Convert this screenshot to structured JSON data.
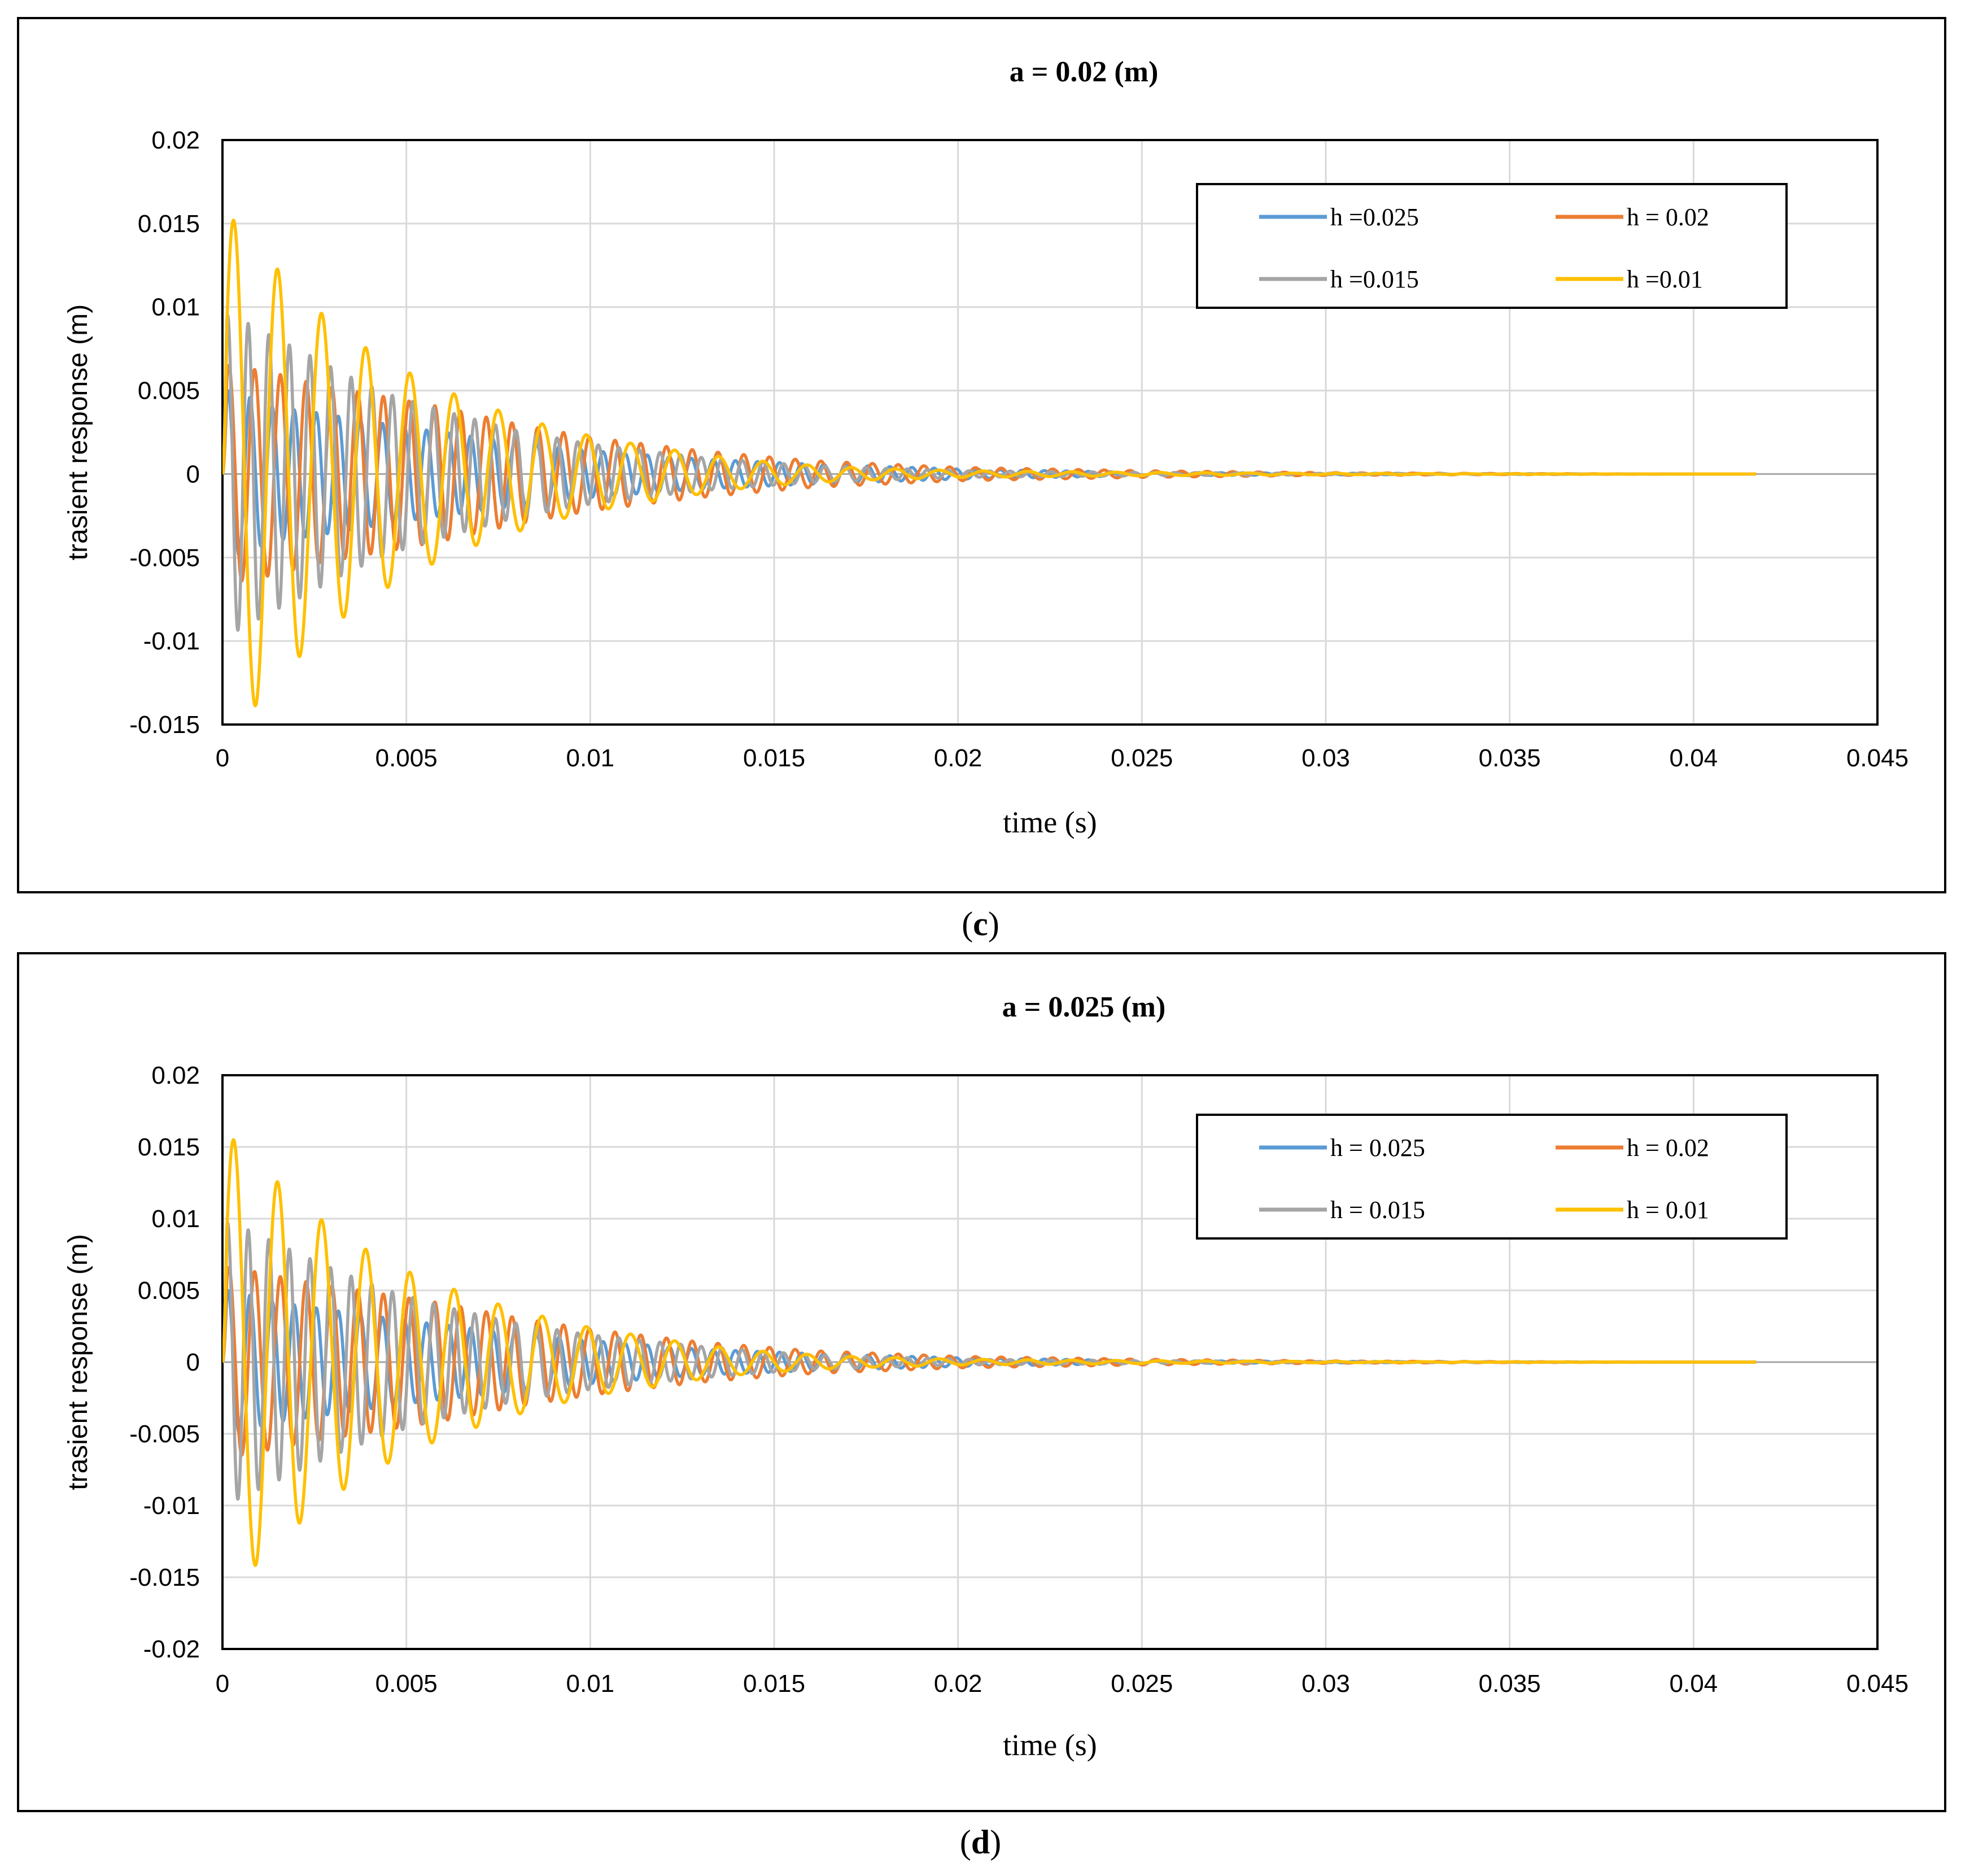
{
  "chart_data": [
    {
      "panel_label": "c",
      "type": "line",
      "title": "a = 0.02 (m)",
      "xlabel": "time (s)",
      "ylabel": "trasient response (m)",
      "xlim": [
        0,
        0.045
      ],
      "ylim": [
        -0.015,
        0.02
      ],
      "xticks": [
        0,
        0.005,
        0.01,
        0.015,
        0.02,
        0.025,
        0.03,
        0.035,
        0.04,
        0.045
      ],
      "xtick_labels": [
        "0",
        "0.005",
        "0.01",
        "0.015",
        "0.02",
        "0.025",
        "0.03",
        "0.035",
        "0.04",
        "0.045"
      ],
      "yticks": [
        -0.015,
        -0.01,
        -0.005,
        0,
        0.005,
        0.01,
        0.015,
        0.02
      ],
      "ytick_labels": [
        "-0.015",
        "-0.01",
        "-0.005",
        "0",
        "0.005",
        "0.01",
        "0.015",
        "0.02"
      ],
      "grid": true,
      "legend_position": "top-right",
      "x_end": 0.0417,
      "series": [
        {
          "name": "h =0.025",
          "color": "#5B9BD5",
          "peak_x": [
            0.0003,
            0.0014,
            0.0025,
            0.0036,
            0.005,
            0.007,
            0.01,
            0.013,
            0.016,
            0.02,
            0.025,
            0.03,
            0.035,
            0.04
          ],
          "peak_y": [
            0.005,
            0.004,
            0.0037,
            0.0033,
            0.0028,
            0.0022,
            0.0014,
            0.0009,
            0.0006,
            0.0003,
            0.0001,
            5e-05,
            2e-05,
            0.0
          ]
        },
        {
          "name": "h = 0.02",
          "color": "#ED7D31",
          "peak_x": [
            0.0003,
            0.0015,
            0.0027,
            0.004,
            0.006,
            0.008,
            0.01,
            0.013,
            0.016,
            0.02,
            0.025,
            0.03,
            0.035,
            0.04
          ],
          "peak_y": [
            0.0065,
            0.006,
            0.0053,
            0.0048,
            0.004,
            0.003,
            0.0022,
            0.0014,
            0.0008,
            0.0004,
            0.0002,
            8e-05,
            3e-05,
            0.0
          ]
        },
        {
          "name": "h =0.015",
          "color": "#A5A5A5",
          "peak_x": [
            0.0003,
            0.0013,
            0.0023,
            0.0033,
            0.0045,
            0.006,
            0.008,
            0.01,
            0.013,
            0.016,
            0.02,
            0.025,
            0.03,
            0.035,
            0.04
          ],
          "peak_y": [
            0.0095,
            0.0083,
            0.0072,
            0.006,
            0.0048,
            0.0038,
            0.0026,
            0.0018,
            0.001,
            0.0005,
            0.0002,
            0.0001,
            4e-05,
            1e-05,
            0.0
          ]
        },
        {
          "name": "h =0.01",
          "color": "#FFC000",
          "peak_x": [
            0.0004,
            0.0016,
            0.0028,
            0.004,
            0.0053,
            0.0066,
            0.0078,
            0.009,
            0.0102,
            0.0115,
            0.013,
            0.014,
            0.0155,
            0.017,
            0.02,
            0.025,
            0.03,
            0.035,
            0.04
          ],
          "peak_y": [
            0.0152,
            0.012,
            0.0094,
            0.0074,
            0.0058,
            0.0045,
            0.0036,
            0.0028,
            0.0022,
            0.0017,
            0.0012,
            0.0009,
            0.0006,
            0.0004,
            0.0002,
            0.0001,
            4e-05,
            1e-05,
            0.0
          ]
        }
      ]
    },
    {
      "panel_label": "d",
      "type": "line",
      "title": "a = 0.025 (m)",
      "xlabel": "time (s)",
      "ylabel": "trasient response (m)",
      "xlim": [
        0,
        0.045
      ],
      "ylim": [
        -0.02,
        0.02
      ],
      "xticks": [
        0,
        0.005,
        0.01,
        0.015,
        0.02,
        0.025,
        0.03,
        0.035,
        0.04,
        0.045
      ],
      "xtick_labels": [
        "0",
        "0.005",
        "0.01",
        "0.015",
        "0.02",
        "0.025",
        "0.03",
        "0.035",
        "0.04",
        "0.045"
      ],
      "yticks": [
        -0.02,
        -0.015,
        -0.01,
        -0.005,
        0,
        0.005,
        0.01,
        0.015,
        0.02
      ],
      "ytick_labels": [
        "-0.02",
        "-0.015",
        "-0.01",
        "-0.005",
        "0",
        "0.005",
        "0.01",
        "0.015",
        "0.02"
      ],
      "grid": true,
      "legend_position": "top-right",
      "x_end": 0.0417,
      "series": [
        {
          "name": "h = 0.025",
          "color": "#5B9BD5",
          "peak_x": [
            0.0003,
            0.0014,
            0.0025,
            0.0036,
            0.005,
            0.007,
            0.01,
            0.013,
            0.016,
            0.02,
            0.025,
            0.03,
            0.035,
            0.04
          ],
          "peak_y": [
            0.005,
            0.0042,
            0.0038,
            0.0034,
            0.0029,
            0.0023,
            0.0015,
            0.0009,
            0.0006,
            0.0003,
            0.0001,
            5e-05,
            2e-05,
            0.0
          ]
        },
        {
          "name": "h = 0.02",
          "color": "#ED7D31",
          "peak_x": [
            0.0003,
            0.0015,
            0.0027,
            0.004,
            0.006,
            0.008,
            0.01,
            0.013,
            0.016,
            0.02,
            0.025,
            0.03,
            0.035,
            0.04
          ],
          "peak_y": [
            0.0066,
            0.006,
            0.0054,
            0.0049,
            0.0041,
            0.0031,
            0.0023,
            0.0014,
            0.0008,
            0.0004,
            0.0002,
            8e-05,
            3e-05,
            0.0
          ]
        },
        {
          "name": "h = 0.015",
          "color": "#A5A5A5",
          "peak_x": [
            0.0003,
            0.0013,
            0.0023,
            0.0033,
            0.0045,
            0.006,
            0.008,
            0.01,
            0.013,
            0.016,
            0.02,
            0.025,
            0.03,
            0.035,
            0.04
          ],
          "peak_y": [
            0.0097,
            0.0085,
            0.0073,
            0.0062,
            0.005,
            0.0039,
            0.0027,
            0.0019,
            0.0011,
            0.0005,
            0.0002,
            0.0001,
            4e-05,
            1e-05,
            0.0
          ]
        },
        {
          "name": "h = 0.01",
          "color": "#FFC000",
          "peak_x": [
            0.0004,
            0.0016,
            0.0028,
            0.004,
            0.0053,
            0.0066,
            0.0078,
            0.009,
            0.0102,
            0.0115,
            0.013,
            0.014,
            0.0155,
            0.017,
            0.02,
            0.025,
            0.03,
            0.035,
            0.04
          ],
          "peak_y": [
            0.0155,
            0.0123,
            0.0097,
            0.0077,
            0.006,
            0.0048,
            0.0038,
            0.003,
            0.0023,
            0.0018,
            0.0012,
            0.0009,
            0.0006,
            0.0004,
            0.0002,
            0.0001,
            4e-05,
            1e-05,
            0.0
          ]
        }
      ]
    }
  ]
}
